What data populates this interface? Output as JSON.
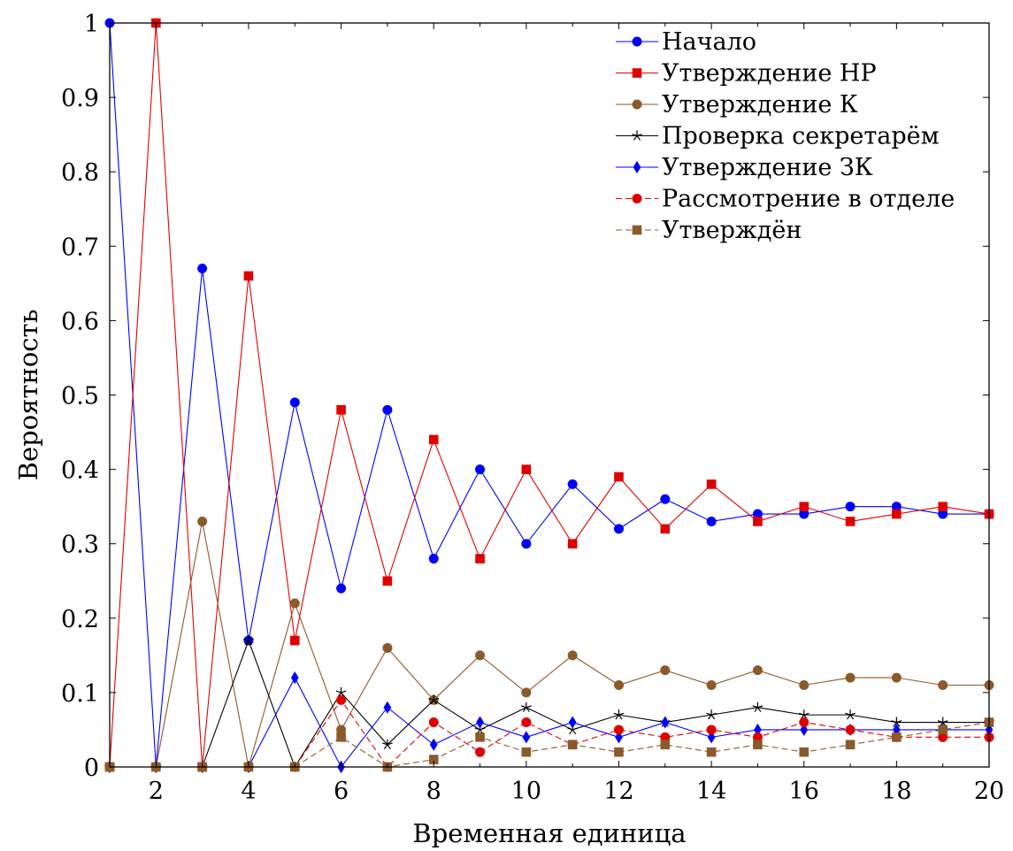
{
  "chart_data": {
    "type": "line",
    "title": "",
    "xlabel": "Временная единица",
    "ylabel": "Вероятность",
    "xlim": [
      1,
      20
    ],
    "ylim": [
      0,
      1
    ],
    "x_ticks": [
      2,
      4,
      6,
      8,
      10,
      12,
      14,
      16,
      18,
      20
    ],
    "x_tick_labels": [
      "2",
      "4",
      "6",
      "8",
      "10",
      "12",
      "14",
      "16",
      "18",
      "20"
    ],
    "y_ticks": [
      0,
      0.1,
      0.2,
      0.3,
      0.4,
      0.5,
      0.6,
      0.7,
      0.8,
      0.9,
      1
    ],
    "y_tick_labels": [
      "0",
      "0.1",
      "0.2",
      "0.3",
      "0.4",
      "0.5",
      "0.6",
      "0.7",
      "0.8",
      "0.9",
      "1"
    ],
    "grid": false,
    "legend_position": "top-right",
    "x": [
      1,
      2,
      3,
      4,
      5,
      6,
      7,
      8,
      9,
      10,
      11,
      12,
      13,
      14,
      15,
      16,
      17,
      18,
      19,
      20
    ],
    "series": [
      {
        "name": "Начало",
        "color": "#0000ff",
        "marker": "circle",
        "dash": false,
        "values": [
          1,
          0,
          0.67,
          0.17,
          0.49,
          0.24,
          0.48,
          0.28,
          0.4,
          0.3,
          0.38,
          0.32,
          0.36,
          0.33,
          0.34,
          0.34,
          0.35,
          0.35,
          0.34,
          0.34
        ]
      },
      {
        "name": "Утверждение НР",
        "color": "#e00000",
        "marker": "square",
        "dash": false,
        "values": [
          0,
          1,
          0,
          0.66,
          0.17,
          0.48,
          0.25,
          0.44,
          0.28,
          0.4,
          0.3,
          0.39,
          0.32,
          0.38,
          0.33,
          0.35,
          0.33,
          0.34,
          0.35,
          0.34
        ]
      },
      {
        "name": "Утверждение К",
        "color": "#8b5a2b",
        "marker": "circle",
        "dash": false,
        "values": [
          0,
          0,
          0.33,
          0,
          0.22,
          0.05,
          0.16,
          0.09,
          0.15,
          0.1,
          0.15,
          0.11,
          0.13,
          0.11,
          0.13,
          0.11,
          0.12,
          0.12,
          0.11,
          0.11
        ]
      },
      {
        "name": "Проверка секретарём",
        "color": "#000000",
        "marker": "star",
        "dash": false,
        "values": [
          0,
          0,
          0,
          0.17,
          0,
          0.1,
          0.03,
          0.09,
          0.05,
          0.08,
          0.05,
          0.07,
          0.06,
          0.07,
          0.08,
          0.07,
          0.07,
          0.06,
          0.06,
          0.06
        ]
      },
      {
        "name": "Утверждение ЗК",
        "color": "#0000ff",
        "marker": "diamond",
        "dash": false,
        "values": [
          0,
          0,
          0,
          0,
          0.12,
          0,
          0.08,
          0.03,
          0.06,
          0.04,
          0.06,
          0.04,
          0.06,
          0.04,
          0.05,
          0.05,
          0.05,
          0.05,
          0.05,
          0.05
        ]
      },
      {
        "name": "Рассмотрение в отделе",
        "color": "#e00000",
        "marker": "circle",
        "dash": true,
        "values": [
          0,
          0,
          0,
          0,
          0,
          0.09,
          0,
          0.06,
          0.02,
          0.06,
          0.03,
          0.05,
          0.04,
          0.05,
          0.04,
          0.06,
          0.05,
          0.04,
          0.04,
          0.04
        ]
      },
      {
        "name": "Утверждён",
        "color": "#8b5a2b",
        "marker": "square",
        "dash": true,
        "values": [
          0,
          0,
          0,
          0,
          0,
          0.04,
          0,
          0.01,
          0.04,
          0.02,
          0.03,
          0.02,
          0.03,
          0.02,
          0.03,
          0.02,
          0.03,
          0.04,
          0.05,
          0.06
        ]
      }
    ]
  }
}
